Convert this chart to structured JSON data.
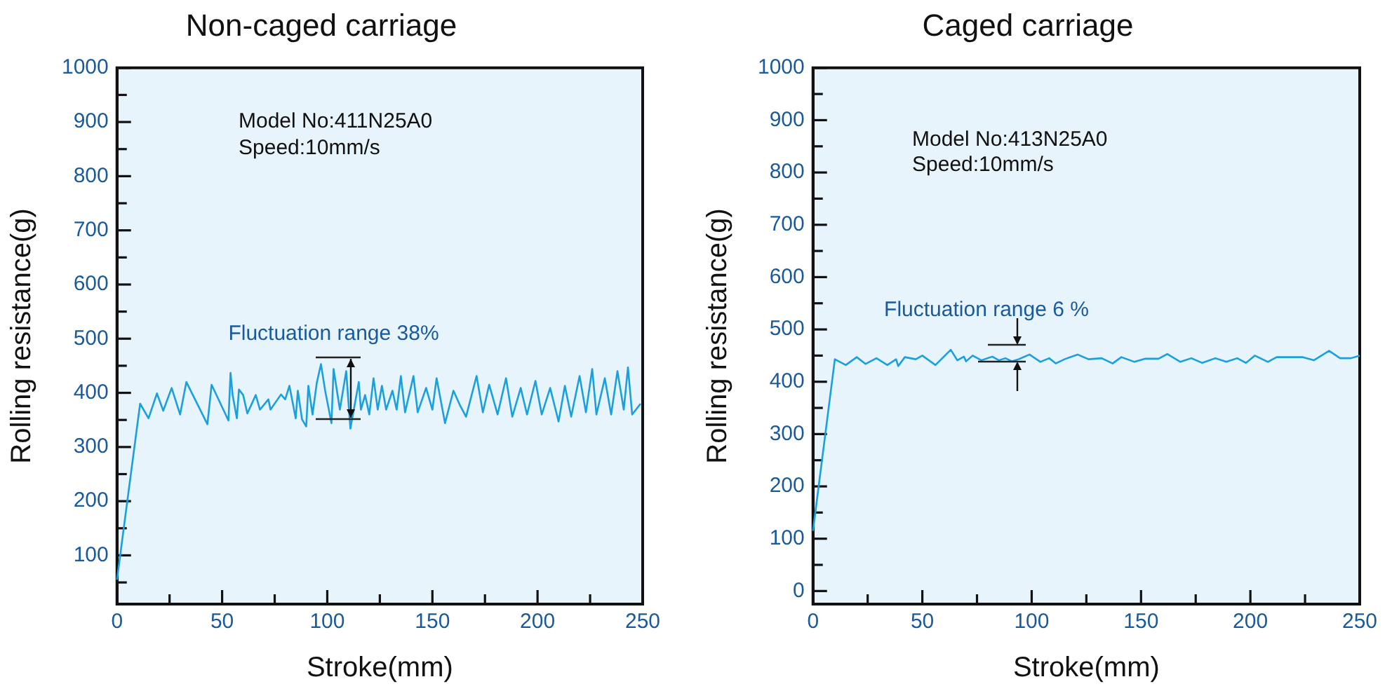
{
  "chart_data": [
    {
      "type": "line",
      "title": "Non-caged carriage",
      "xlabel": "Stroke(mm)",
      "ylabel": "Rolling resistance(g)",
      "annotations": [
        "Model No:411N25A0",
        "Speed:10mm/s",
        {
          "text": "Fluctuation range 38%",
          "x": 105,
          "y": 395
        }
      ],
      "series": [
        {
          "color": "#1aa0dc",
          "x": [
            0,
            11,
            15,
            19,
            22,
            26,
            30,
            33,
            43,
            45,
            53,
            54,
            55,
            57,
            58,
            60,
            62,
            66,
            68,
            72,
            73,
            78,
            80,
            82,
            85,
            86,
            88,
            90,
            91,
            93,
            95,
            97,
            99,
            102,
            103,
            106,
            109,
            111,
            115,
            116,
            118,
            120,
            122,
            124,
            126,
            128,
            131,
            133,
            135,
            137,
            141,
            143,
            147,
            150,
            152,
            156,
            160,
            163,
            166,
            171,
            174,
            177,
            181,
            185,
            188,
            192,
            195,
            199,
            202,
            206,
            210,
            213,
            216,
            220,
            223,
            226,
            228,
            232,
            235,
            238,
            241,
            243,
            245,
            249
          ],
          "values": [
            55,
            380,
            353,
            399,
            367,
            409,
            360,
            420,
            342,
            415,
            349,
            437,
            396,
            353,
            406,
            396,
            362,
            396,
            369,
            388,
            369,
            397,
            388,
            413,
            353,
            404,
            351,
            338,
            413,
            360,
            418,
            453,
            404,
            344,
            444,
            369,
            440,
            334,
            420,
            369,
            396,
            360,
            427,
            369,
            413,
            369,
            404,
            369,
            431,
            364,
            431,
            364,
            409,
            369,
            427,
            344,
            404,
            378,
            356,
            431,
            364,
            415,
            360,
            427,
            356,
            409,
            360,
            422,
            360,
            409,
            347,
            413,
            356,
            431,
            364,
            444,
            360,
            427,
            360,
            440,
            369,
            447,
            360,
            380
          ]
        }
      ],
      "xlim": [
        0,
        250
      ],
      "xticks": [
        0,
        {
          "value": 25,
          "label": null
        },
        50,
        {
          "value": 75,
          "label": null
        },
        100,
        {
          "value": 125,
          "label": null
        },
        150,
        {
          "value": 175,
          "label": null
        },
        200,
        {
          "value": 225,
          "label": null
        },
        250
      ],
      "ylim": [
        10,
        1000
      ],
      "yticks": [
        {
          "value": 50,
          "label": null
        },
        100,
        {
          "value": 150,
          "label": null
        },
        200,
        {
          "value": 250,
          "label": null
        },
        300,
        {
          "value": 350,
          "label": null
        },
        400,
        {
          "value": 450,
          "label": null
        },
        500,
        {
          "value": 550,
          "label": null
        },
        600,
        {
          "value": 650,
          "label": null
        },
        700,
        {
          "value": 750,
          "label": null
        },
        800,
        {
          "value": 850,
          "label": null
        },
        900,
        {
          "value": 950,
          "label": null
        },
        1000
      ],
      "grid": false,
      "legend": false,
      "marker": "none",
      "line_style": "solid"
    },
    {
      "type": "line",
      "title": "Caged carriage",
      "xlabel": "Stroke(mm)",
      "ylabel": "Rolling resistance(g)",
      "annotations": [
        "Model No:413N25A0",
        "Speed:10mm/s",
        {
          "text": "Fluctuation range 6 %",
          "x": 80,
          "y": 445
        }
      ],
      "series": [
        {
          "color": "#1aa0dc",
          "x": [
            0,
            10,
            15,
            20,
            24,
            29,
            34,
            38,
            39,
            42,
            47,
            50,
            56,
            63,
            66,
            69,
            70,
            73,
            77,
            82,
            85,
            88,
            91,
            94,
            99,
            104,
            108,
            111,
            115,
            121,
            126,
            132,
            137,
            141,
            147,
            152,
            158,
            162,
            168,
            173,
            178,
            184,
            189,
            194,
            198,
            202,
            208,
            212,
            224,
            229,
            236,
            241,
            246,
            250
          ],
          "values": [
            115,
            443,
            432,
            447,
            434,
            445,
            432,
            443,
            430,
            447,
            443,
            450,
            432,
            461,
            441,
            448,
            439,
            450,
            441,
            448,
            441,
            445,
            439,
            443,
            452,
            438,
            445,
            435,
            443,
            452,
            443,
            445,
            435,
            447,
            438,
            444,
            444,
            453,
            438,
            445,
            436,
            445,
            438,
            445,
            436,
            450,
            438,
            447,
            447,
            441,
            459,
            445,
            445,
            450
          ]
        }
      ],
      "xlim": [
        0,
        250
      ],
      "xticks": [
        0,
        {
          "value": 25,
          "label": null
        },
        50,
        {
          "value": 75,
          "label": null
        },
        100,
        {
          "value": 125,
          "label": null
        },
        150,
        {
          "value": 175,
          "label": null
        },
        200,
        {
          "value": 225,
          "label": null
        },
        250
      ],
      "ylim": [
        -25,
        1000
      ],
      "yticks": [
        0,
        {
          "value": 50,
          "label": null
        },
        100,
        {
          "value": 150,
          "label": null
        },
        200,
        {
          "value": 250,
          "label": null
        },
        300,
        {
          "value": 350,
          "label": null
        },
        400,
        {
          "value": 450,
          "label": null
        },
        500,
        {
          "value": 550,
          "label": null
        },
        600,
        {
          "value": 650,
          "label": null
        },
        700,
        {
          "value": 750,
          "label": null
        },
        800,
        {
          "value": 850,
          "label": null
        },
        900,
        {
          "value": 950,
          "label": null
        },
        1000
      ],
      "grid": false,
      "legend": false,
      "marker": "none",
      "line_style": "solid"
    }
  ]
}
